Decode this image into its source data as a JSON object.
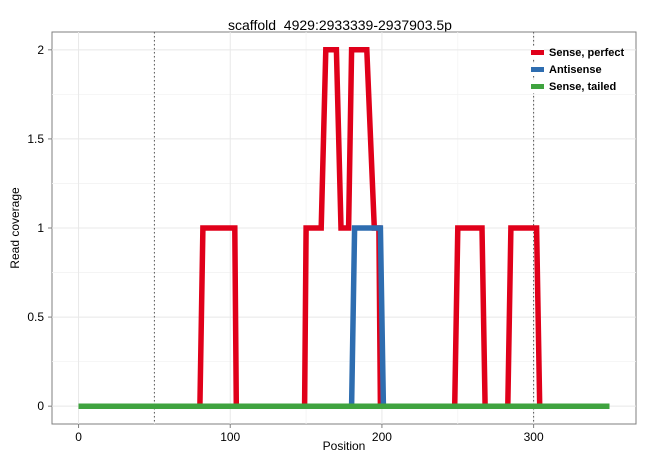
{
  "chart_data": {
    "type": "line",
    "title": "scaffold_4929:2933339-2937903.5p",
    "xlabel": "Position",
    "ylabel": "Read coverage",
    "xlim": [
      -17.5,
      367.5
    ],
    "ylim": [
      -0.1,
      2.1
    ],
    "x_ticks": [
      0,
      100,
      200,
      300
    ],
    "y_ticks": [
      0,
      0.5,
      1,
      1.5,
      2
    ],
    "x_tick_labels": [
      "0",
      "100",
      "200",
      "300"
    ],
    "y_tick_labels": [
      "0",
      "0.5",
      "1",
      "1.5",
      "2"
    ],
    "grid": true,
    "reference_lines": [
      50,
      300
    ],
    "legend_position": "top-right",
    "series": [
      {
        "name": "Sense, perfect",
        "color": "#e0001a",
        "x": [
          0,
          80,
          82,
          103,
          104,
          149,
          150,
          160,
          163,
          170,
          173,
          178,
          180,
          190,
          195,
          198,
          199,
          248,
          250,
          266,
          268,
          283,
          285,
          302,
          304,
          350
        ],
        "y": [
          0,
          0,
          1,
          1,
          0,
          0,
          1,
          1,
          2,
          2,
          1,
          1,
          2,
          2,
          1,
          1,
          0,
          0,
          1,
          1,
          0,
          0,
          1,
          1,
          0,
          0
        ]
      },
      {
        "name": "Antisense",
        "color": "#2e6db0",
        "x": [
          0,
          180,
          182,
          199,
          201,
          350
        ],
        "y": [
          0,
          0,
          1,
          1,
          0,
          0
        ]
      },
      {
        "name": "Sense, tailed",
        "color": "#3fa33f",
        "x": [
          0,
          350
        ],
        "y": [
          0,
          0
        ]
      }
    ]
  }
}
